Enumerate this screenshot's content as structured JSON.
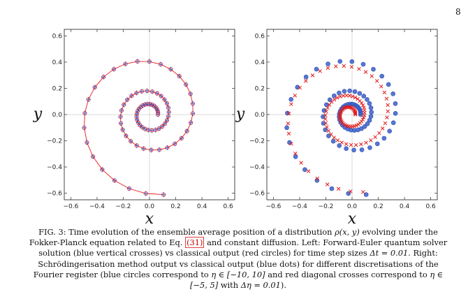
{
  "page_number": "8",
  "chart_data": [
    {
      "type": "scatter",
      "panel": "left",
      "xlabel": "x",
      "ylabel": "y",
      "xlim": [
        -0.65,
        0.65
      ],
      "ylim": [
        -0.65,
        0.65
      ],
      "xticks": [
        -0.6,
        -0.4,
        -0.2,
        0.0,
        0.2,
        0.4,
        0.6
      ],
      "yticks": [
        -0.6,
        -0.4,
        -0.2,
        0.0,
        0.2,
        0.4,
        0.6
      ],
      "xtick_labels": [
        "−0.6",
        "−0.4",
        "−0.2",
        "0.0",
        "0.2",
        "0.4",
        "0.6"
      ],
      "ytick_labels": [
        "−0.6",
        "−0.4",
        "−0.2",
        "0.0",
        "0.2",
        "0.4",
        "0.6"
      ],
      "series": [
        {
          "name": "Forward-Euler quantum solver solution",
          "marker": "vertical-cross",
          "color": "#3a5fcd"
        },
        {
          "name": "classical output",
          "marker": "circle",
          "color": "#e31a1c"
        }
      ],
      "spiral": {
        "r0": 0.065,
        "r_end": 0.62,
        "theta_start_deg": 0,
        "theta_end_deg": 1000,
        "center": [
          0.0,
          0.0
        ],
        "points": 80
      }
    },
    {
      "type": "scatter",
      "panel": "right",
      "xlabel": "x",
      "ylabel": "y",
      "xlim": [
        -0.65,
        0.65
      ],
      "ylim": [
        -0.65,
        0.65
      ],
      "xticks": [
        -0.6,
        -0.4,
        -0.2,
        0.0,
        0.2,
        0.4,
        0.6
      ],
      "yticks": [
        -0.6,
        -0.4,
        -0.2,
        0.0,
        0.2,
        0.4,
        0.6
      ],
      "xtick_labels": [
        "−0.6",
        "−0.4",
        "−0.2",
        "0.0",
        "0.2",
        "0.4",
        "0.6"
      ],
      "ytick_labels": [
        "−0.6",
        "−0.4",
        "−0.2",
        "0.0",
        "0.2",
        "0.4",
        "0.6"
      ],
      "series": [
        {
          "name": "eta in [-10,10]",
          "marker": "circle-filled",
          "color": "#3a5fcd",
          "spiral": {
            "r0": 0.065,
            "r_end": 0.62,
            "theta_start_deg": 0,
            "theta_end_deg": 1000,
            "center": [
              0.0,
              0.0
            ],
            "points": 80
          }
        },
        {
          "name": "eta in [-5,5]",
          "marker": "diagonal-cross",
          "color": "#e31a1c",
          "spiral": {
            "r0": 0.045,
            "r_end": 0.6,
            "theta_start_deg": 0,
            "theta_end_deg": 1000,
            "center": [
              -0.02,
              0.0
            ],
            "points": 110
          }
        }
      ]
    }
  ],
  "caption": {
    "p1": "FIG. 3: Time evolution of the ensemble average position of a distribution ",
    "m1": "ρ(x, y)",
    "p2": " evolving under the Fokker-Planck equation related to Eq. ",
    "ref": "(31)",
    "p3": " and constant diffusion. Left: Forward-Euler quantum solver solution (blue vertical crosses) vs classical output (red circles) for time step sizes ",
    "m2": "Δt = 0.01",
    "p4": ". Right: Schrödingerisation method output vs classical output (blue dots) for different discretisations of the Fourier register (blue circles correspond to ",
    "m3": "η ∈ [−10, 10]",
    "p5": " and red diagonal crosses correspond to ",
    "m4": "η ∈ [−5, 5]",
    "p6": " with ",
    "m5": "Δη = 0.01",
    "p7": ")."
  }
}
